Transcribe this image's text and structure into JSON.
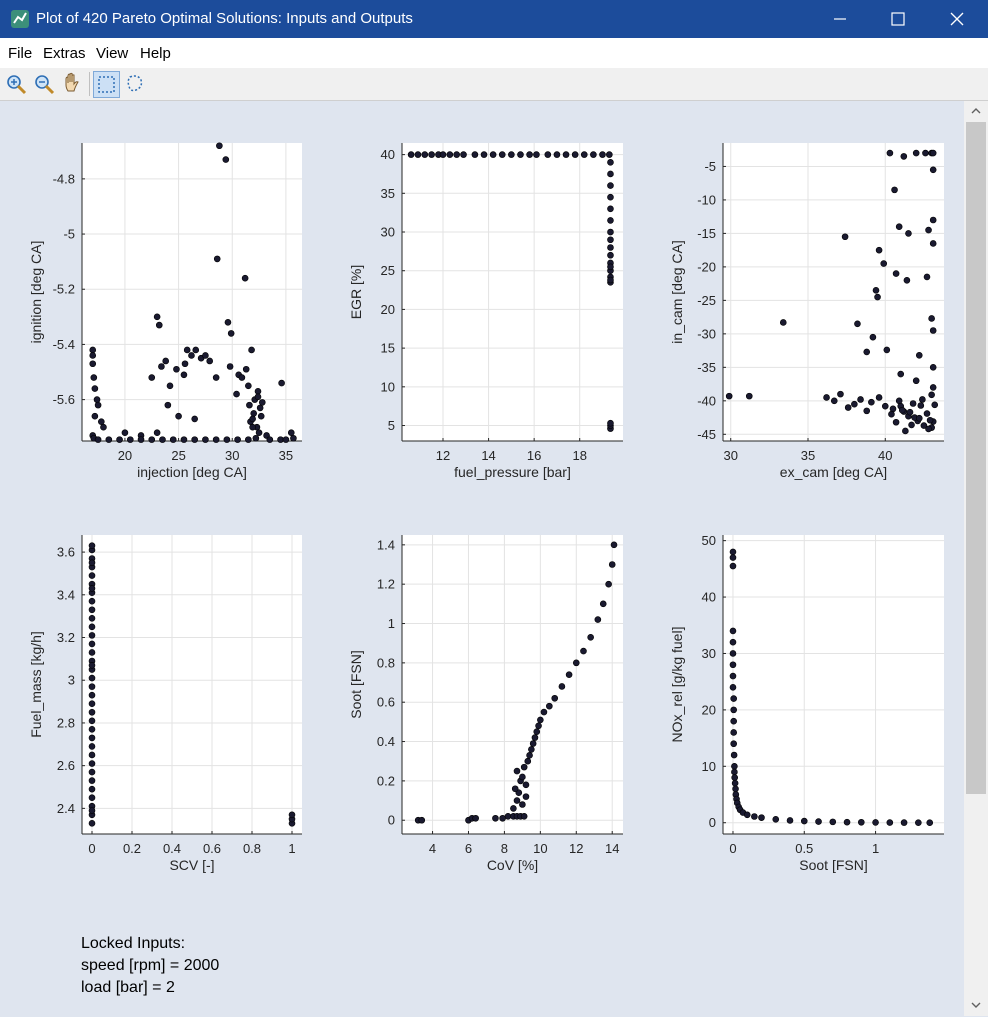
{
  "window": {
    "title": "Plot of 420 Pareto Optimal Solutions: Inputs and Outputs",
    "controls": [
      "minimize",
      "maximize",
      "close"
    ]
  },
  "menu": {
    "items": [
      "File",
      "Extras",
      "View",
      "Help"
    ]
  },
  "toolbar": {
    "tools": [
      "zoom-in-icon",
      "zoom-out-icon",
      "pan-hand-icon",
      "rect-select-icon",
      "lasso-select-icon"
    ],
    "active_tool": "rect-select-icon"
  },
  "locked_inputs": {
    "heading": "Locked Inputs:",
    "lines": [
      "speed [rpm] = 2000",
      "load [bar] = 2"
    ]
  },
  "colors": {
    "titlebar": "#1c4c9b",
    "content_bg": "#dfe5ef",
    "axes_bg": "#ffffff",
    "grid": "#e3e3e3",
    "marker_fill": "#1a1a30",
    "marker_edge": "#000000"
  },
  "chart_data": [
    {
      "type": "scatter",
      "xlabel": "injection [deg CA]",
      "ylabel": "ignition [deg CA]",
      "xlim": [
        16,
        36.5
      ],
      "ylim": [
        -5.75,
        -4.67
      ],
      "xticks": [
        20,
        25,
        30,
        35
      ],
      "yticks": [
        -5.6,
        -5.4,
        -5.2,
        -5,
        -4.8
      ],
      "grid": true,
      "x": [
        28.8,
        29.4,
        28.6,
        31.2,
        23,
        23.2,
        29.6,
        29.9,
        17,
        17,
        17,
        17.1,
        17.2,
        17.4,
        17.5,
        17.2,
        17.8,
        18,
        17,
        17.1,
        20,
        21.5,
        23,
        22.5,
        23.4,
        23.8,
        24.2,
        24.8,
        25.5,
        25.8,
        26.2,
        26.6,
        27.1,
        27.5,
        27.9,
        24,
        25,
        26.5,
        28.5,
        30.4,
        25.6,
        29.8,
        30.6,
        31.3,
        31.8,
        31.5,
        32.1,
        32.4,
        32.6,
        31.7,
        32,
        32.3,
        32.5,
        32.2,
        31.9,
        32.8,
        31.6,
        32.4,
        31.9,
        32.7,
        30.9,
        33.2,
        34.6,
        35.5,
        35.7,
        17.5,
        18.5,
        19.5,
        20.5,
        21.5,
        22.5,
        23.5,
        24.5,
        25.5,
        26.5,
        27.5,
        28.5,
        29.5,
        30.5,
        31.5,
        33.5,
        34.5,
        35
      ],
      "y": [
        -4.68,
        -4.73,
        -5.09,
        -5.16,
        -5.3,
        -5.33,
        -5.32,
        -5.36,
        -5.42,
        -5.44,
        -5.47,
        -5.52,
        -5.56,
        -5.6,
        -5.62,
        -5.66,
        -5.68,
        -5.7,
        -5.73,
        -5.74,
        -5.72,
        -5.73,
        -5.72,
        -5.52,
        -5.48,
        -5.46,
        -5.55,
        -5.49,
        -5.51,
        -5.42,
        -5.44,
        -5.42,
        -5.45,
        -5.44,
        -5.46,
        -5.62,
        -5.66,
        -5.67,
        -5.52,
        -5.58,
        -5.47,
        -5.48,
        -5.51,
        -5.49,
        -5.42,
        -5.55,
        -5.6,
        -5.57,
        -5.63,
        -5.68,
        -5.65,
        -5.7,
        -5.72,
        -5.74,
        -5.67,
        -5.61,
        -5.62,
        -5.59,
        -5.7,
        -5.66,
        -5.52,
        -5.73,
        -5.54,
        -5.72,
        -5.74,
        -5.745,
        -5.745,
        -5.745,
        -5.745,
        -5.745,
        -5.745,
        -5.745,
        -5.745,
        -5.745,
        -5.745,
        -5.745,
        -5.745,
        -5.745,
        -5.745,
        -5.745,
        -5.745,
        -5.745,
        -5.745
      ]
    },
    {
      "type": "scatter",
      "xlabel": "fuel_pressure [bar]",
      "ylabel": "EGR [%]",
      "xlim": [
        10.2,
        19.9
      ],
      "ylim": [
        3,
        41.5
      ],
      "xticks": [
        12,
        14,
        16,
        18
      ],
      "yticks": [
        5,
        10,
        15,
        20,
        25,
        30,
        35,
        40
      ],
      "grid": true,
      "x": [
        10.6,
        10.9,
        11.2,
        11.5,
        11.8,
        12,
        12.3,
        12.6,
        12.9,
        13.4,
        13.8,
        14.2,
        14.6,
        15,
        15.4,
        15.8,
        16.1,
        16.6,
        17,
        17.4,
        17.8,
        18.2,
        18.6,
        19,
        19.3,
        19.35,
        19.35,
        19.35,
        19.35,
        19.35,
        19.35,
        19.35,
        19.35,
        19.35,
        19.35,
        19.35,
        19.35,
        19.35,
        19.35,
        19.35,
        19.35,
        19.35,
        19.35,
        19.35
      ],
      "y": [
        40,
        40,
        40,
        40,
        40,
        40,
        40,
        40,
        40,
        40,
        40,
        40,
        40,
        40,
        40,
        40,
        40,
        40,
        40,
        40,
        40,
        40,
        40,
        40,
        40,
        39,
        37.5,
        36,
        34.5,
        33,
        31.5,
        30,
        29,
        28,
        27,
        26,
        25,
        24.2,
        23.5,
        23.8,
        25.5,
        4.6,
        5,
        5.3
      ]
    },
    {
      "type": "scatter",
      "xlabel": "ex_cam [deg CA]",
      "ylabel": "in_cam [deg CA]",
      "xlim": [
        29.5,
        43.8
      ],
      "ylim": [
        -46,
        -1.5
      ],
      "xticks": [
        30,
        35,
        40
      ],
      "yticks": [
        -45,
        -40,
        -35,
        -30,
        -25,
        -20,
        -15,
        -10,
        -5
      ],
      "grid": true,
      "x": [
        29.9,
        31.2,
        33.4,
        37.4,
        38.2,
        36.2,
        36.7,
        37.1,
        37.6,
        38,
        38.4,
        38.8,
        39.1,
        39.6,
        40,
        40.5,
        40.9,
        41.2,
        41.5,
        41.8,
        42.1,
        42.4,
        42.7,
        43,
        43.2,
        40.7,
        41.3,
        41.9,
        42.5,
        43,
        40.4,
        41,
        41.6,
        42.2,
        42.8,
        43.1,
        41.1,
        41.7,
        42.3,
        42.9,
        39.2,
        40.1,
        41,
        42,
        43.1,
        40.3,
        42.6,
        43,
        42,
        43.1,
        41.2,
        40.6,
        43.1,
        39.6,
        39.9,
        40.9,
        41.5,
        42.8,
        43.1,
        39.4,
        41.4,
        42.7,
        43.1,
        38.8,
        39.5,
        40.7,
        42.2,
        43,
        43.1,
        43.1
      ],
      "y": [
        -39.3,
        -39.3,
        -28.3,
        -15.5,
        -28.5,
        -39.5,
        -40,
        -39,
        -41,
        -40.5,
        -39.8,
        -41.5,
        -40.2,
        -39.5,
        -40.8,
        -41.2,
        -40,
        -41.6,
        -42.3,
        -40.4,
        -43,
        -39.8,
        -41.9,
        -44,
        -40.6,
        -43.2,
        -44.5,
        -42.5,
        -43.7,
        -39.1,
        -42,
        -40.8,
        -41.7,
        -42.6,
        -44.2,
        -43.1,
        -41.4,
        -43.6,
        -40.7,
        -42.9,
        -30.5,
        -32.4,
        -36,
        -37,
        -35,
        -3,
        -3,
        -3,
        -3,
        -3,
        -3.5,
        -8.5,
        -5.5,
        -17.5,
        -19.5,
        -14,
        -15,
        -14.5,
        -13,
        -23.5,
        -22,
        -21.5,
        -16.5,
        -32.7,
        -24.5,
        -21,
        -33.2,
        -27.7,
        -29.5,
        -38
      ]
    },
    {
      "type": "scatter",
      "xlabel": "SCV [-]",
      "ylabel": "Fuel_mass [kg/h]",
      "xlim": [
        -0.05,
        1.05
      ],
      "ylim": [
        2.28,
        3.68
      ],
      "xticks": [
        0,
        0.2,
        0.4,
        0.6,
        0.8,
        1
      ],
      "yticks": [
        2.4,
        2.6,
        2.8,
        3,
        3.2,
        3.4,
        3.6
      ],
      "grid": true,
      "x": [
        0,
        0,
        0,
        0,
        0,
        0,
        0,
        0,
        0,
        0,
        0,
        0,
        0,
        0,
        0,
        0,
        0,
        0,
        0,
        0,
        0,
        0,
        0,
        0,
        0,
        0,
        0,
        0,
        0,
        0,
        0,
        0,
        0,
        0,
        0,
        0,
        0,
        0,
        1,
        1,
        1
      ],
      "y": [
        2.33,
        2.37,
        2.41,
        2.45,
        2.49,
        2.53,
        2.57,
        2.61,
        2.65,
        2.69,
        2.73,
        2.77,
        2.81,
        2.85,
        2.89,
        2.93,
        2.97,
        3.01,
        3.05,
        3.09,
        3.13,
        3.17,
        3.21,
        3.25,
        3.29,
        3.33,
        3.37,
        3.41,
        3.45,
        3.49,
        3.53,
        3.57,
        3.61,
        3.63,
        3.55,
        3.43,
        3.07,
        2.39,
        2.33,
        2.35,
        2.37
      ]
    },
    {
      "type": "scatter",
      "xlabel": "CoV [%]",
      "ylabel": "Soot [FSN]",
      "xlim": [
        2.3,
        14.6
      ],
      "ylim": [
        -0.07,
        1.45
      ],
      "xticks": [
        4,
        6,
        8,
        10,
        12,
        14
      ],
      "yticks": [
        0,
        0.2,
        0.4,
        0.6,
        0.8,
        1,
        1.2,
        1.4
      ],
      "grid": true,
      "x": [
        3.2,
        3.4,
        6,
        6.2,
        6.4,
        7.5,
        7.9,
        8.2,
        8.5,
        8.7,
        8.9,
        9.1,
        8.5,
        8.7,
        8.8,
        9,
        9.2,
        8.6,
        8.9,
        9.2,
        8.7,
        9,
        9.1,
        9.3,
        9.4,
        9.5,
        9.6,
        9.7,
        9.8,
        9.9,
        10,
        10.2,
        10.5,
        10.8,
        11.2,
        11.6,
        12,
        12.4,
        12.8,
        13.2,
        13.5,
        13.8,
        14,
        14.1
      ],
      "y": [
        0,
        0,
        0,
        0.01,
        0.01,
        0.01,
        0.01,
        0.02,
        0.02,
        0.02,
        0.02,
        0.02,
        0.06,
        0.1,
        0.14,
        0.08,
        0.12,
        0.16,
        0.2,
        0.18,
        0.25,
        0.22,
        0.27,
        0.3,
        0.33,
        0.36,
        0.39,
        0.42,
        0.45,
        0.48,
        0.51,
        0.55,
        0.58,
        0.62,
        0.68,
        0.74,
        0.8,
        0.86,
        0.93,
        1.02,
        1.1,
        1.2,
        1.3,
        1.4
      ]
    },
    {
      "type": "scatter",
      "xlabel": "Soot [FSN]",
      "ylabel": "NOx_rel [g/kg fuel]",
      "xlim": [
        -0.07,
        1.48
      ],
      "ylim": [
        -2,
        51
      ],
      "xticks": [
        0,
        0.5,
        1
      ],
      "yticks": [
        0,
        10,
        20,
        30,
        40,
        50
      ],
      "grid": true,
      "x": [
        0,
        0,
        0,
        0,
        0,
        0,
        0,
        0,
        0,
        0.005,
        0.005,
        0.005,
        0.005,
        0.005,
        0.008,
        0.01,
        0.01,
        0.012,
        0.015,
        0.018,
        0.02,
        0.025,
        0.03,
        0.04,
        0.05,
        0.07,
        0.1,
        0.15,
        0.2,
        0.3,
        0.4,
        0.5,
        0.6,
        0.7,
        0.8,
        0.9,
        1,
        1.1,
        1.2,
        1.3,
        1.38
      ],
      "y": [
        48,
        47,
        45.5,
        34,
        32,
        30,
        28,
        26,
        24,
        22,
        20,
        18,
        16,
        14,
        12,
        10,
        9,
        8,
        7,
        6,
        5,
        4.2,
        3.5,
        2.8,
        2.3,
        1.8,
        1.4,
        1.1,
        0.9,
        0.6,
        0.4,
        0.3,
        0.2,
        0.15,
        0.1,
        0.08,
        0.05,
        0.03,
        0.02,
        0.01,
        0
      ]
    }
  ]
}
